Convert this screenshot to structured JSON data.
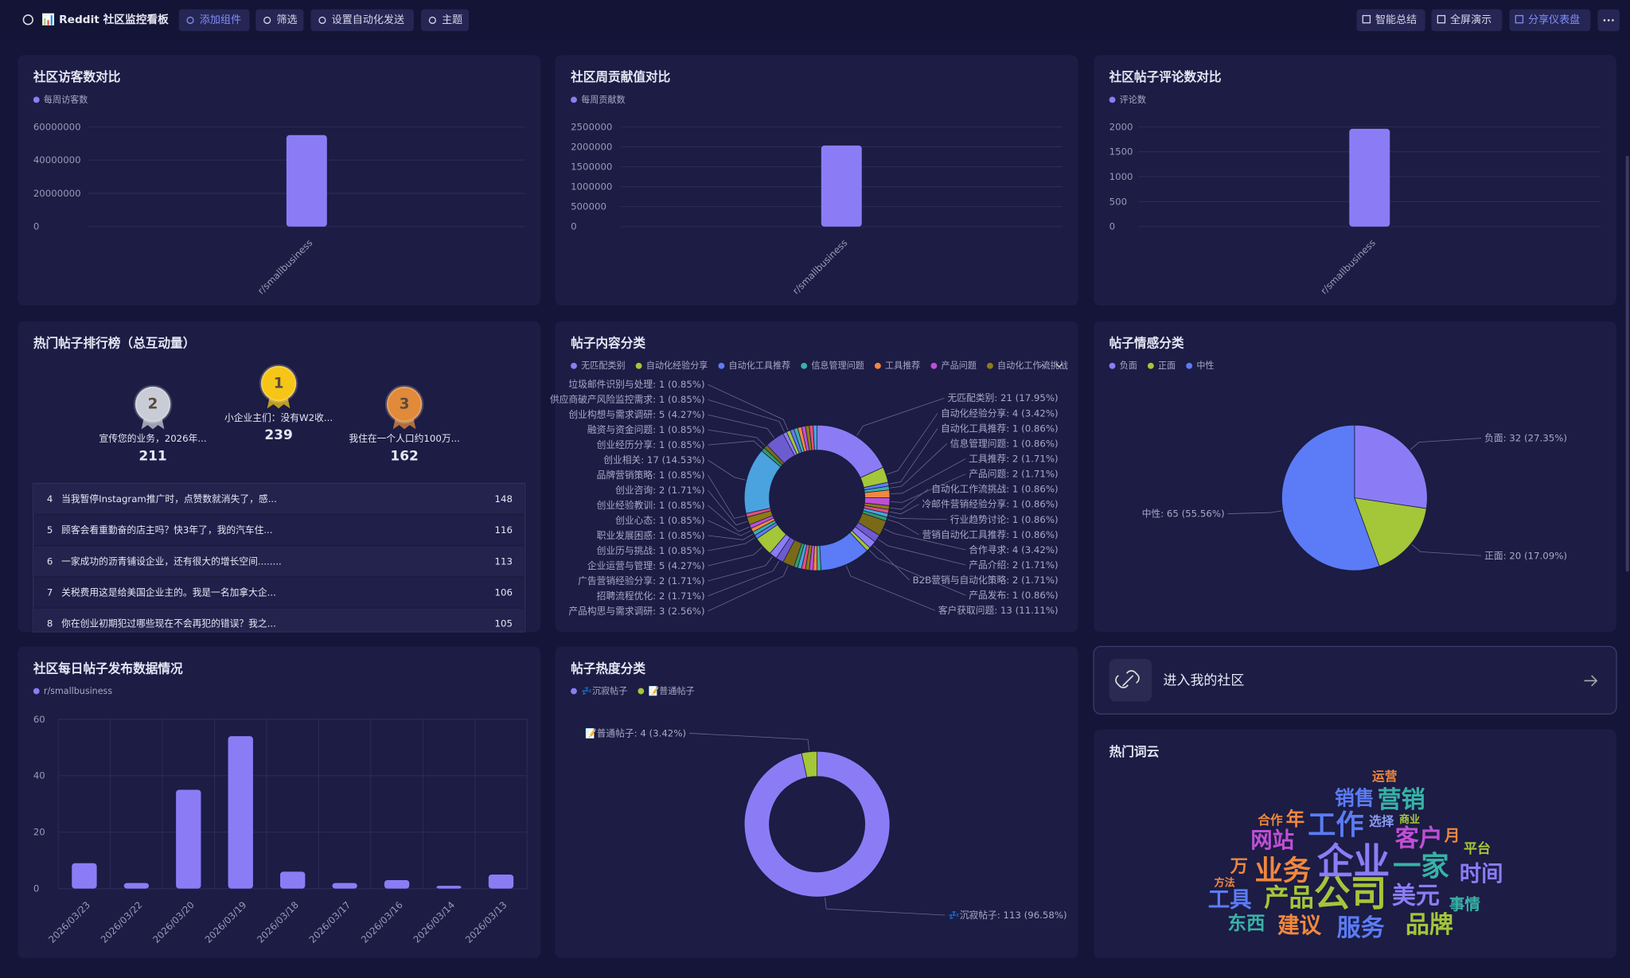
{
  "toolbar": {
    "title": "📊 Reddit 社区监控看板",
    "left_buttons": [
      "添加组件",
      "筛选",
      "设置自动化发送",
      "主题"
    ],
    "right_buttons": [
      "智能总结",
      "全屏演示",
      "分享仪表盘"
    ]
  },
  "chart_data": [
    {
      "type": "bar",
      "title": "社区访客数对比",
      "categories": [
        "r/smallbusiness"
      ],
      "series": [
        {
          "name": "每周访客数",
          "color": "#8b7cf6",
          "values": [
            55000000
          ]
        }
      ],
      "ylim": [
        0,
        60000000
      ],
      "yticks": [
        0,
        20000000,
        40000000,
        60000000
      ],
      "grid": true
    },
    {
      "type": "bar",
      "title": "社区周贡献值对比",
      "categories": [
        "r/smallbusiness"
      ],
      "series": [
        {
          "name": "每周贡献数",
          "color": "#8b7cf6",
          "values": [
            2030000
          ]
        }
      ],
      "ylim": [
        0,
        2500000
      ],
      "yticks": [
        0,
        500000,
        1000000,
        1500000,
        2000000,
        2500000
      ],
      "grid": true
    },
    {
      "type": "bar",
      "title": "社区帖子评论数对比",
      "categories": [
        "r/smallbusiness"
      ],
      "series": [
        {
          "name": "评论数",
          "color": "#8b7cf6",
          "values": [
            1960
          ]
        }
      ],
      "ylim": [
        0,
        2000
      ],
      "yticks": [
        0,
        500,
        1000,
        1500,
        2000
      ],
      "grid": true
    },
    {
      "type": "donut",
      "title": "帖子内容分类",
      "categories": [
        "无匹配类别",
        "自动化经验分享",
        "自动化工具推荐",
        "信息管理问题",
        "工具推荐",
        "产品问题",
        "自动化工作流挑战",
        "冷邮件营销经验分享",
        "行业趋势讨论",
        "营销自动化工具推荐",
        "合作寻求",
        "产品介绍",
        "B2B营销与自动化策略",
        "产品发布",
        "客户获取问题",
        null,
        null,
        null,
        null,
        null,
        null,
        null,
        "产品构思与需求调研",
        "招聘流程优化",
        "广告营销经验分享",
        "企业运营与管理",
        "创业历与挑战",
        "职业发展困惑",
        "创业心态",
        "创业经验教训",
        "创业咨询",
        "品牌营销策略",
        "创业相关",
        "创业经历分享",
        "融资与资金问题",
        "创业构想与需求调研",
        "供应商破产风险监控需求",
        "垃圾邮件识别与处理",
        null,
        null,
        null,
        null,
        null,
        null,
        null
      ],
      "values": [
        21,
        4,
        1,
        1,
        2,
        2,
        1,
        1,
        1,
        1,
        4,
        2,
        2,
        1,
        13,
        1,
        1,
        1,
        1,
        1,
        1,
        1,
        3,
        2,
        2,
        5,
        1,
        1,
        1,
        1,
        2,
        1,
        17,
        1,
        1,
        5,
        1,
        1,
        1,
        1,
        1,
        1,
        1,
        1,
        1
      ],
      "value_labels": [
        "无匹配类别: 21 (17.95%)",
        "自动化经验分享: 4 (3.42%)",
        "自动化工具推荐: 1 (0.86%)",
        "信息管理问题: 1 (0.86%)",
        "工具推荐: 2 (1.71%)",
        "产品问题: 2 (1.71%)",
        "自动化工作流挑战: 1 (0.86%)",
        "冷邮件营销经验分享: 1 (0.86%)",
        "行业趋势讨论: 1 (0.86%)",
        "营销自动化工具推荐: 1 (0.86%)",
        "合作寻求: 4 (3.42%)",
        "产品介绍: 2 (1.71%)",
        "B2B营销与自动化策略: 2 (1.71%)",
        "产品发布: 1 (0.86%)",
        "客户获取问题: 13 (11.11%)",
        null,
        null,
        null,
        null,
        null,
        null,
        null,
        "产品构思与需求调研: 3 (2.56%)",
        "招聘流程优化: 2 (1.71%)",
        "广告营销经验分享: 2 (1.71%)",
        "企业运营与管理: 5 (4.27%)",
        "创业历与挑战: 1 (0.85%)",
        "职业发展困惑: 1 (0.85%)",
        "创业心态: 1 (0.85%)",
        "创业经验教训: 1 (0.85%)",
        "创业咨询: 2 (1.71%)",
        "品牌营销策略: 1 (0.85%)",
        "创业相关: 17 (14.53%)",
        "创业经历分享: 1 (0.85%)",
        "融资与资金问题: 1 (0.85%)",
        "创业构想与需求调研: 5 (4.27%)",
        "供应商破产风险监控需求: 1 (0.85%)",
        "垃圾邮件识别与处理: 1 (0.85%)",
        null,
        null,
        null,
        null,
        null,
        null,
        null
      ],
      "palette": [
        "#8b7cf6",
        "#a4c639",
        "#5b7cf6",
        "#38b2a6",
        "#f0883e",
        "#bf4fd6",
        "#8a7d12",
        "#e0507a",
        "#4aa3df",
        "#2f9e67",
        "#7a6a18",
        "#6d5bd0"
      ]
    },
    {
      "type": "pie",
      "title": "帖子情感分类",
      "categories": [
        "负面",
        "正面",
        "中性"
      ],
      "values": [
        32,
        20,
        65
      ],
      "value_labels": [
        "负面: 32 (27.35%)",
        "正面: 20 (17.09%)",
        "中性: 65 (55.56%)"
      ],
      "colors": [
        "#8b7cf6",
        "#a4c639",
        "#5b7cf6"
      ]
    },
    {
      "type": "bar",
      "title": "社区每日帖子发布数据情况",
      "categories": [
        "2026/03/23",
        "2026/03/22",
        "2026/03/20",
        "2026/03/19",
        "2026/03/18",
        "2026/03/17",
        "2026/03/16",
        "2026/03/14",
        "2026/03/13"
      ],
      "series": [
        {
          "name": "r/smallbusiness",
          "color": "#8b7cf6",
          "values": [
            9,
            2,
            35,
            54,
            6,
            2,
            3,
            1,
            5
          ]
        }
      ],
      "ylim": [
        0,
        60
      ],
      "yticks": [
        0,
        20,
        40,
        60
      ],
      "grid": true
    },
    {
      "type": "donut",
      "title": "帖子热度分类",
      "categories": [
        "💤沉寂帖子",
        "📝普通帖子"
      ],
      "values": [
        113,
        4
      ],
      "value_labels": [
        "💤沉寂帖子: 113 (96.58%)",
        "📝普通帖子: 4 (3.42%)"
      ],
      "colors": [
        "#8b7cf6",
        "#a4c639"
      ]
    }
  ],
  "ranking": {
    "title": "热门帖子排行榜（总互动量）",
    "podium": [
      {
        "rank": 2,
        "title": "宣传您的业务，2026年...",
        "value": 211
      },
      {
        "rank": 1,
        "title": "小企业主们：没有W2收...",
        "value": 239
      },
      {
        "rank": 3,
        "title": "我住在一个人口约100万...",
        "value": 162
      }
    ],
    "list": [
      {
        "rank": 4,
        "title": "当我暂停Instagram推广时，点赞数就消失了，感...",
        "value": 148
      },
      {
        "rank": 5,
        "title": "顾客会看重勤奋的店主吗？快3年了，我的汽车住...",
        "value": 116
      },
      {
        "rank": 6,
        "title": "一家成功的沥青铺设企业，还有很大的增长空间........",
        "value": 113
      },
      {
        "rank": 7,
        "title": "关税费用这是给美国企业主的。我是一名加拿大企...",
        "value": 106
      },
      {
        "rank": 8,
        "title": "你在创业初期犯过哪些现在不会再犯的错误？我之...",
        "value": 105
      }
    ]
  },
  "community_link": {
    "label": "进入我的社区"
  },
  "word_cloud": {
    "title": "热门词云",
    "words": [
      "运营",
      "销售",
      "营销",
      "合作",
      "年",
      "工作",
      "选择",
      "商业",
      "网站",
      "客户",
      "月",
      "平台",
      "万",
      "业务",
      "企业",
      "一家",
      "时间",
      "方法",
      "工具",
      "产品",
      "公司",
      "美元",
      "事情",
      "东西",
      "建议",
      "服务",
      "品牌"
    ]
  }
}
